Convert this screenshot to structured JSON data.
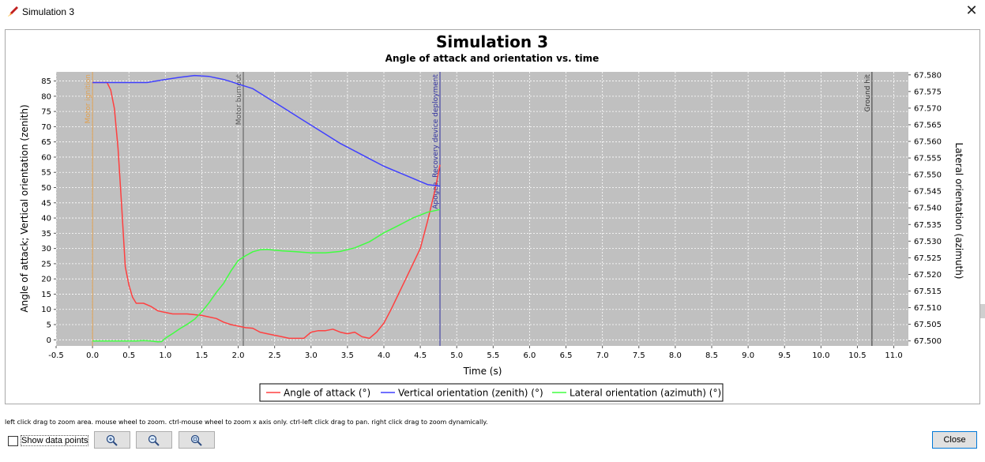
{
  "window": {
    "title": "Simulation 3",
    "close_symbol": "✕"
  },
  "chart_data": {
    "type": "line",
    "title": "Simulation 3",
    "subtitle": "Angle of attack and orientation vs. time",
    "xlabel": "Time (s)",
    "ylabel": "Angle of attack; Vertical orientation (zenith)",
    "y2label": "Lateral orientation (azimuth)",
    "xlim": [
      -0.5,
      11.2
    ],
    "ylim": [
      -2,
      88
    ],
    "y2lim": [
      67.4985,
      67.5809
    ],
    "xticks": [
      "-0.5",
      "0.0",
      "0.5",
      "1.0",
      "1.5",
      "2.0",
      "2.5",
      "3.0",
      "3.5",
      "4.0",
      "4.5",
      "5.0",
      "5.5",
      "6.0",
      "6.5",
      "7.0",
      "7.5",
      "8.0",
      "8.5",
      "9.0",
      "9.5",
      "10.0",
      "10.5",
      "11.0"
    ],
    "yticks": [
      "0",
      "5",
      "10",
      "15",
      "20",
      "25",
      "30",
      "35",
      "40",
      "45",
      "50",
      "55",
      "60",
      "65",
      "70",
      "75",
      "80",
      "85"
    ],
    "y2ticks": [
      "67.500",
      "67.505",
      "67.510",
      "67.515",
      "67.520",
      "67.525",
      "67.530",
      "67.535",
      "67.540",
      "67.545",
      "67.550",
      "67.555",
      "67.560",
      "67.565",
      "67.570",
      "67.575",
      "67.580"
    ],
    "grid": true,
    "legend_position": "bottom",
    "events": [
      {
        "label": "Motor ignition",
        "x": 0.0,
        "color": "#e0a050"
      },
      {
        "label": "Motor burnout",
        "x": 2.07,
        "color": "#555555"
      },
      {
        "label": "Apogee, Recovery device deployment",
        "x": 4.77,
        "color": "#3030a0"
      },
      {
        "label": "Ground hit",
        "x": 10.7,
        "color": "#333333"
      }
    ],
    "series": [
      {
        "name": "Angle of attack (°)",
        "color": "#ff4040",
        "axis": "left",
        "x": [
          0.0,
          0.2,
          0.25,
          0.3,
          0.35,
          0.4,
          0.45,
          0.5,
          0.55,
          0.6,
          0.65,
          0.7,
          0.75,
          0.8,
          0.9,
          1.0,
          1.1,
          1.2,
          1.3,
          1.5,
          1.6,
          1.7,
          1.8,
          1.9,
          2.0,
          2.1,
          2.2,
          2.3,
          2.4,
          2.5,
          2.6,
          2.7,
          2.8,
          2.9,
          3.0,
          3.1,
          3.2,
          3.3,
          3.4,
          3.5,
          3.6,
          3.7,
          3.8,
          3.85,
          3.9,
          4.0,
          4.1,
          4.2,
          4.3,
          4.4,
          4.5,
          4.6,
          4.7,
          4.77
        ],
        "y": [
          84.5,
          84.5,
          82,
          76,
          63,
          44,
          24,
          18,
          14,
          12,
          12,
          12,
          11.5,
          11,
          9.5,
          9,
          8.5,
          8.5,
          8.5,
          8,
          7.5,
          7,
          5.8,
          5,
          4.5,
          4,
          3.8,
          2.5,
          2,
          1.5,
          1,
          0.5,
          0.5,
          0.5,
          2.5,
          3,
          3,
          3.5,
          2.5,
          2,
          2.5,
          1,
          0.5,
          1.5,
          2.5,
          5.5,
          10,
          15,
          20,
          25,
          30,
          39,
          49,
          57.5
        ]
      },
      {
        "name": "Vertical orientation (zenith) (°)",
        "color": "#4040ff",
        "axis": "left",
        "x": [
          0.0,
          0.2,
          0.5,
          0.75,
          1.0,
          1.2,
          1.4,
          1.6,
          1.8,
          1.9,
          2.0,
          2.2,
          2.4,
          2.6,
          2.8,
          3.0,
          3.2,
          3.4,
          3.6,
          3.8,
          4.0,
          4.2,
          4.4,
          4.6,
          4.77
        ],
        "y": [
          84.5,
          84.5,
          84.5,
          84.5,
          85.5,
          86.2,
          86.8,
          86.5,
          85.5,
          84.8,
          84,
          82.5,
          79.5,
          76.5,
          73.5,
          70.5,
          67.5,
          64.5,
          62,
          59.5,
          57,
          55,
          53,
          51,
          50.5
        ]
      },
      {
        "name": "Lateral orientation (azimuth) (°)",
        "color": "#40ff40",
        "axis": "right",
        "x": [
          0.0,
          0.2,
          0.4,
          0.6,
          0.7,
          0.8,
          0.9,
          0.95,
          1.0,
          1.1,
          1.2,
          1.3,
          1.4,
          1.5,
          1.6,
          1.7,
          1.8,
          1.9,
          2.0,
          2.1,
          2.2,
          2.3,
          2.4,
          2.6,
          2.8,
          3.0,
          3.2,
          3.4,
          3.6,
          3.8,
          4.0,
          4.2,
          4.4,
          4.6,
          4.77
        ],
        "y": [
          67.5,
          67.5,
          67.5,
          67.5,
          67.5001,
          67.5,
          67.4997,
          67.4998,
          67.5008,
          67.5022,
          67.5037,
          67.505,
          67.5065,
          67.5087,
          67.5115,
          67.5146,
          67.5173,
          67.521,
          67.5242,
          67.5256,
          67.5268,
          67.5274,
          67.5275,
          67.5271,
          67.5268,
          67.5265,
          67.5265,
          67.5269,
          67.528,
          67.5298,
          67.5325,
          67.5347,
          67.537,
          67.5387,
          67.5395
        ]
      }
    ]
  },
  "hint_text": "left click drag to zoom area. mouse wheel to zoom. ctrl-mouse wheel to zoom x axis only. ctrl-left click drag to pan.  right click drag to zoom dynamically.",
  "controls": {
    "show_points_label": "Show data points",
    "zoom_buttons": [
      "zoom-in",
      "zoom-out",
      "zoom-reset"
    ],
    "close_label": "Close"
  }
}
